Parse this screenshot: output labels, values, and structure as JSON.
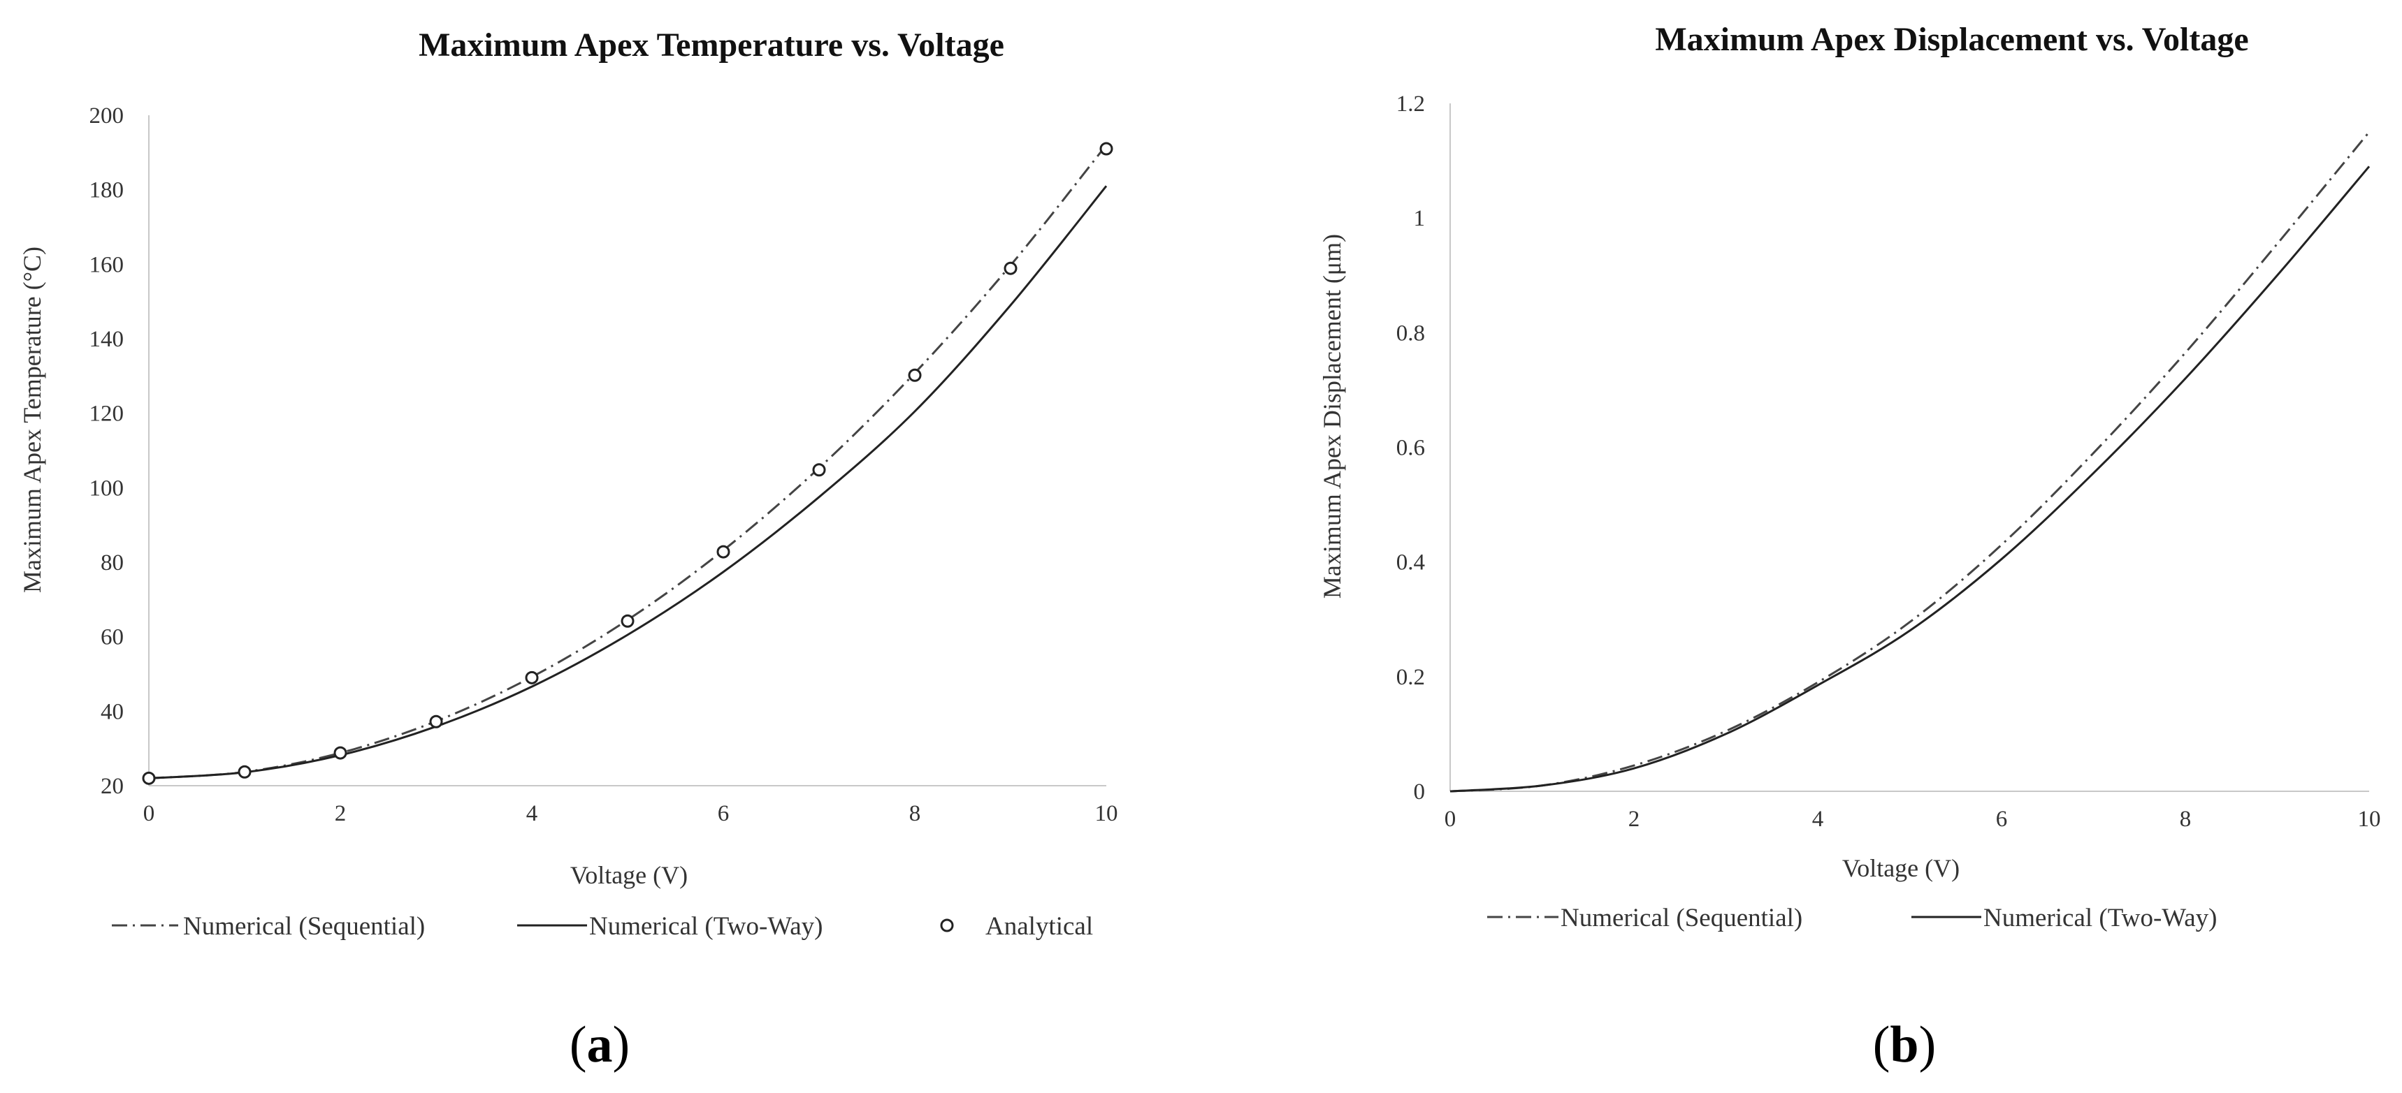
{
  "panels": [
    {
      "label_open": "(",
      "label_letter": "a",
      "label_close": ")"
    },
    {
      "label_open": "(",
      "label_letter": "b",
      "label_close": ")"
    }
  ],
  "chart_data": [
    {
      "type": "line",
      "title": "Maximum Apex Temperature vs. Voltage",
      "xlabel": "Voltage (V)",
      "ylabel": "Maximum Apex Temperature (°C)",
      "xlim": [
        0,
        10
      ],
      "ylim": [
        20,
        200
      ],
      "xticks": [
        0,
        2,
        4,
        6,
        8,
        10
      ],
      "yticks": [
        20,
        40,
        60,
        80,
        100,
        120,
        140,
        160,
        180,
        200
      ],
      "grid": false,
      "legend_position": "bottom",
      "series": [
        {
          "name": "Numerical (Sequential)",
          "style": "dashdot",
          "color": "#444444",
          "x": [
            0,
            1,
            2,
            3,
            4,
            5,
            6,
            7,
            8,
            9,
            10
          ],
          "y": [
            22,
            23.7,
            28.8,
            37.3,
            49.2,
            64.5,
            83.2,
            105.3,
            130.8,
            159.7,
            192
          ]
        },
        {
          "name": "Numerical (Two-Way)",
          "style": "solid",
          "color": "#222222",
          "x": [
            0,
            1,
            2,
            3,
            4,
            5,
            6,
            7,
            8,
            9,
            10
          ],
          "y": [
            22,
            23.6,
            28.2,
            35.9,
            46.6,
            60.5,
            77.4,
            97.5,
            120.5,
            149,
            181
          ]
        },
        {
          "name": "Analytical",
          "style": "marker-circle",
          "color": "#222222",
          "x": [
            0,
            1,
            2,
            3,
            4,
            5,
            6,
            7,
            8,
            9,
            10
          ],
          "y": [
            22,
            23.7,
            28.8,
            37.2,
            49,
            64.2,
            82.8,
            104.8,
            130.2,
            158.9,
            191
          ]
        }
      ]
    },
    {
      "type": "line",
      "title": "Maximum Apex Displacement vs. Voltage",
      "xlabel": "Voltage (V)",
      "ylabel": "Maximum Apex Displacement (μm)",
      "xlim": [
        0,
        10
      ],
      "ylim": [
        0,
        1.2
      ],
      "xticks": [
        0,
        2,
        4,
        6,
        8,
        10
      ],
      "yticks": [
        0,
        0.2,
        0.4,
        0.6,
        0.8,
        1,
        1.2
      ],
      "grid": false,
      "legend_position": "bottom",
      "series": [
        {
          "name": "Numerical (Sequential)",
          "style": "dashdot",
          "color": "#444444",
          "x": [
            0,
            1,
            2,
            3,
            4,
            5,
            6,
            7,
            8,
            9,
            10
          ],
          "y": [
            0,
            0.01,
            0.045,
            0.105,
            0.19,
            0.295,
            0.43,
            0.59,
            0.765,
            0.955,
            1.15
          ]
        },
        {
          "name": "Numerical (Two-Way)",
          "style": "solid",
          "color": "#222222",
          "x": [
            0,
            1,
            2,
            3,
            4,
            5,
            6,
            7,
            8,
            9,
            10
          ],
          "y": [
            0,
            0.01,
            0.04,
            0.1,
            0.185,
            0.28,
            0.405,
            0.555,
            0.72,
            0.9,
            1.09
          ]
        }
      ]
    }
  ]
}
